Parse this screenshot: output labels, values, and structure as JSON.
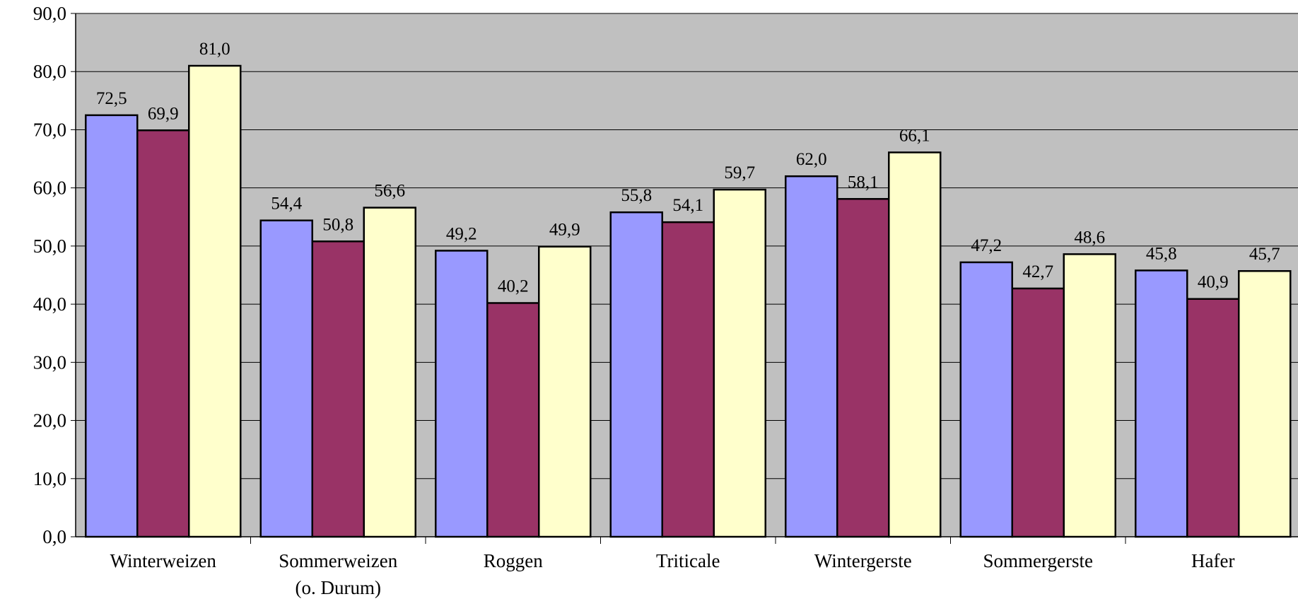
{
  "chart_data": {
    "type": "bar",
    "title": "",
    "xlabel": "",
    "ylabel": "",
    "ylim": [
      0,
      90
    ],
    "ytick_step": 10,
    "ytick_labels": [
      "0,0",
      "10,0",
      "20,0",
      "30,0",
      "40,0",
      "50,0",
      "60,0",
      "70,0",
      "80,0",
      "90,0"
    ],
    "grid": true,
    "legend": "none",
    "categories": [
      [
        "Winterweizen"
      ],
      [
        "Sommerweizen",
        "(o. Durum)"
      ],
      [
        "Roggen"
      ],
      [
        "Triticale"
      ],
      [
        "Wintergerste"
      ],
      [
        "Sommergerste"
      ],
      [
        "Hafer"
      ]
    ],
    "series": [
      {
        "color": "#9999ff",
        "values": [
          72.5,
          54.4,
          49.2,
          55.8,
          62.0,
          47.2,
          45.8
        ],
        "labels": [
          "72,5",
          "54,4",
          "49,2",
          "55,8",
          "62,0",
          "47,2",
          "45,8"
        ]
      },
      {
        "color": "#993366",
        "values": [
          69.9,
          50.8,
          40.2,
          54.1,
          58.1,
          42.7,
          40.9
        ],
        "labels": [
          "69,9",
          "50,8",
          "40,2",
          "54,1",
          "58,1",
          "42,7",
          "40,9"
        ]
      },
      {
        "color": "#ffffcc",
        "values": [
          81.0,
          56.6,
          49.9,
          59.7,
          66.1,
          48.6,
          45.7
        ],
        "labels": [
          "81,0",
          "56,6",
          "49,9",
          "59,7",
          "66,1",
          "48,6",
          "45,7"
        ]
      }
    ],
    "plot_background": "#c0c0c0"
  }
}
